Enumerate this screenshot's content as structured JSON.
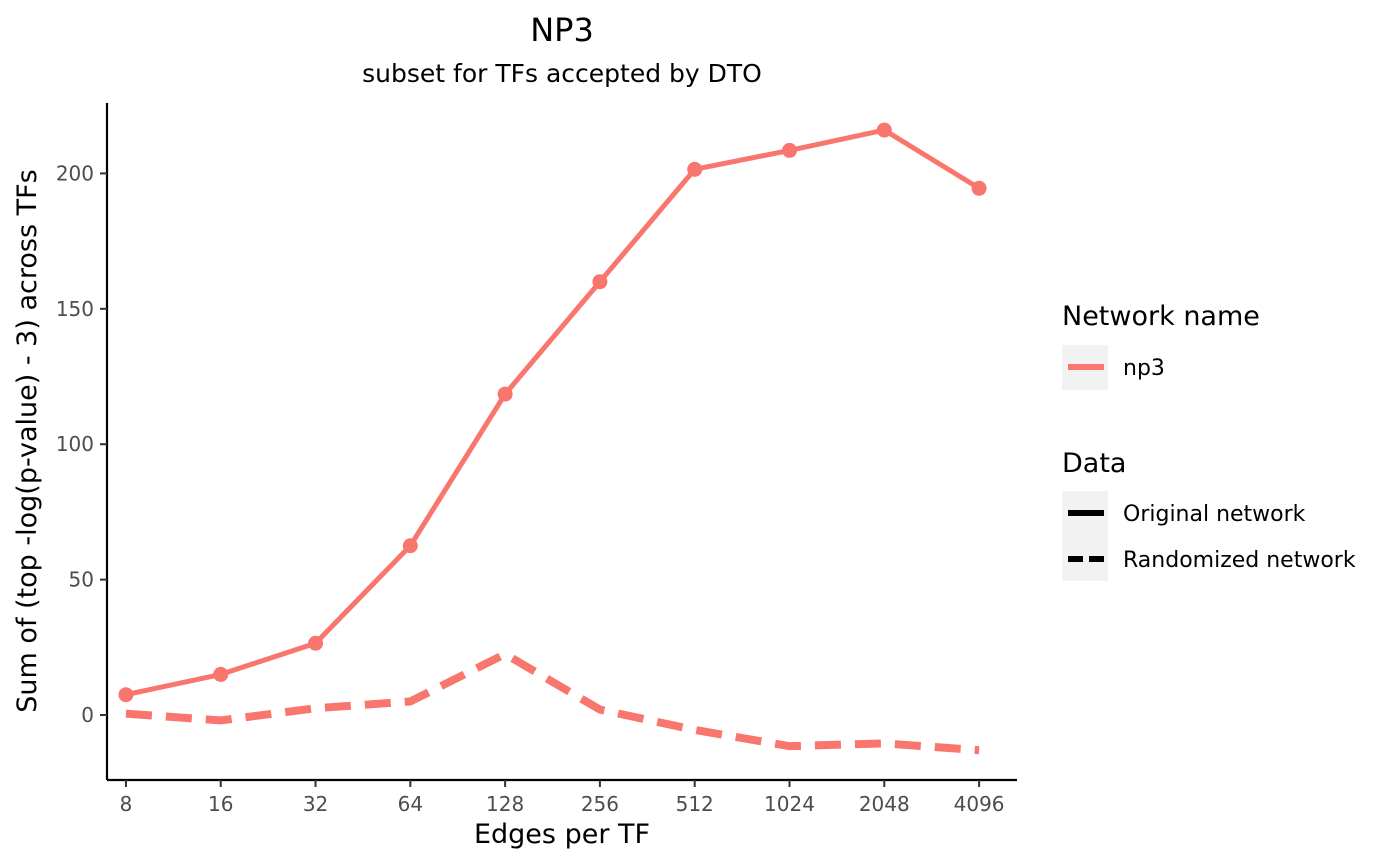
{
  "chart_data": {
    "type": "line",
    "title": "NP3",
    "subtitle": "subset for TFs accepted by DTO",
    "xlabel": "Edges per TF",
    "ylabel": "Sum of (top -log(p-value) - 3) across TFs",
    "categories": [
      "8",
      "16",
      "32",
      "64",
      "128",
      "256",
      "512",
      "1024",
      "2048",
      "4096"
    ],
    "ylim": [
      -24,
      226
    ],
    "y_ticks": [
      0,
      50,
      100,
      150,
      200
    ],
    "grid": false,
    "legend_position": "right",
    "series": [
      {
        "name": "np3",
        "data": "Original network",
        "values": [
          7.5,
          15.0,
          26.5,
          62.5,
          118.5,
          160.0,
          201.5,
          208.5,
          216.0,
          194.5
        ]
      },
      {
        "name": "np3",
        "data": "Randomized network",
        "values": [
          0.5,
          -2.0,
          2.5,
          5.0,
          22.5,
          2.0,
          -5.5,
          -11.5,
          -10.5,
          -13.0
        ]
      }
    ],
    "colors": {
      "np3": "#F8766D"
    },
    "legend": {
      "color_title": "Network name",
      "color_items": [
        "np3"
      ],
      "linetype_title": "Data",
      "linetype_items": [
        "Original network",
        "Randomized network"
      ]
    }
  }
}
